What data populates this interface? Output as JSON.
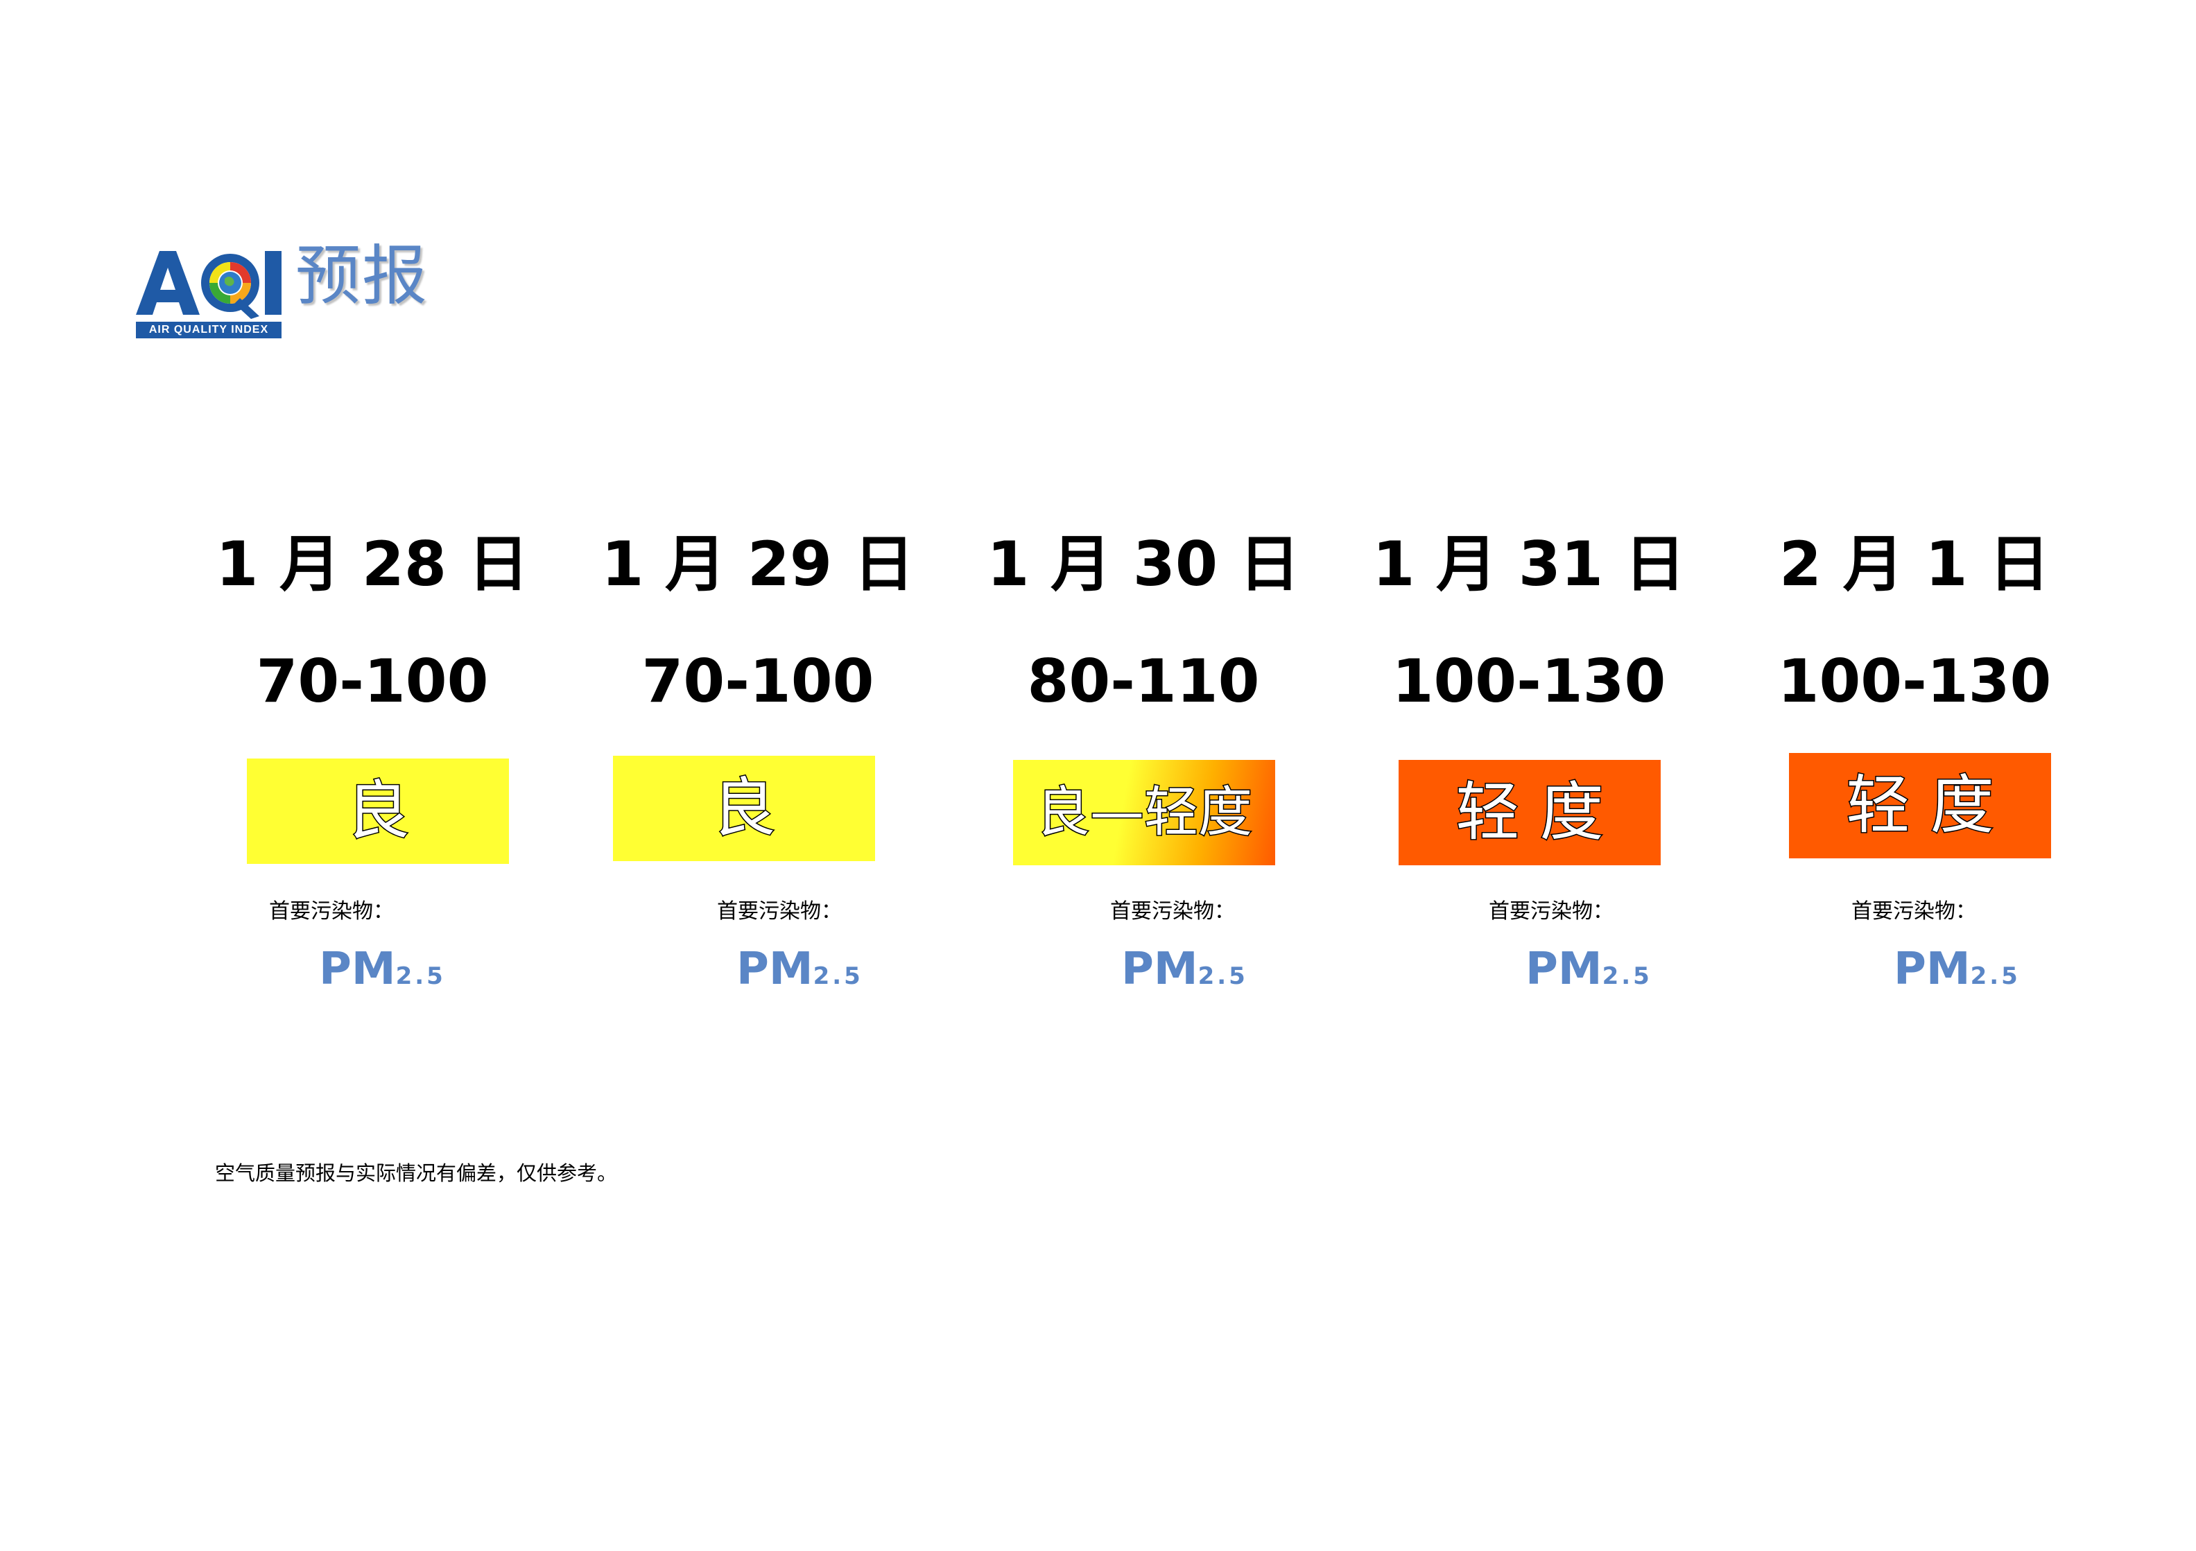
{
  "logo": {
    "mark_text": "AQI",
    "mark_subtitle": "AIR QUALITY INDEX",
    "title": "预报",
    "colors": {
      "primary": "#1f5aa6",
      "accent": "#5a86c6"
    }
  },
  "days": [
    {
      "date": "1 月 28 日",
      "range": "70-100",
      "level": "良",
      "pollutant_label": "首要污染物：",
      "pollutant": "PM",
      "pollutant_sub": "2.5",
      "badge_color": "#ffff33"
    },
    {
      "date": "1 月 29 日",
      "range": "70-100",
      "level": "良",
      "pollutant_label": "首要污染物：",
      "pollutant": "PM",
      "pollutant_sub": "2.5",
      "badge_color": "#ffff33"
    },
    {
      "date": "1 月 30 日",
      "range": "80-110",
      "level": "良—轻度",
      "pollutant_label": "首要污染物：",
      "pollutant": "PM",
      "pollutant_sub": "2.5",
      "badge_color": "#ffff33",
      "badge_color_end": "#ff6600"
    },
    {
      "date": "1 月 31 日",
      "range": "100-130",
      "level": "轻 度",
      "pollutant_label": "首要污染物：",
      "pollutant": "PM",
      "pollutant_sub": "2.5",
      "badge_color": "#ff5a00"
    },
    {
      "date": "2 月 1 日",
      "range": "100-130",
      "level": "轻 度",
      "pollutant_label": "首要污染物：",
      "pollutant": "PM",
      "pollutant_sub": "2.5",
      "badge_color": "#ff5a00"
    }
  ],
  "footnote": "空气质量预报与实际情况有偏差，仅供参考。"
}
